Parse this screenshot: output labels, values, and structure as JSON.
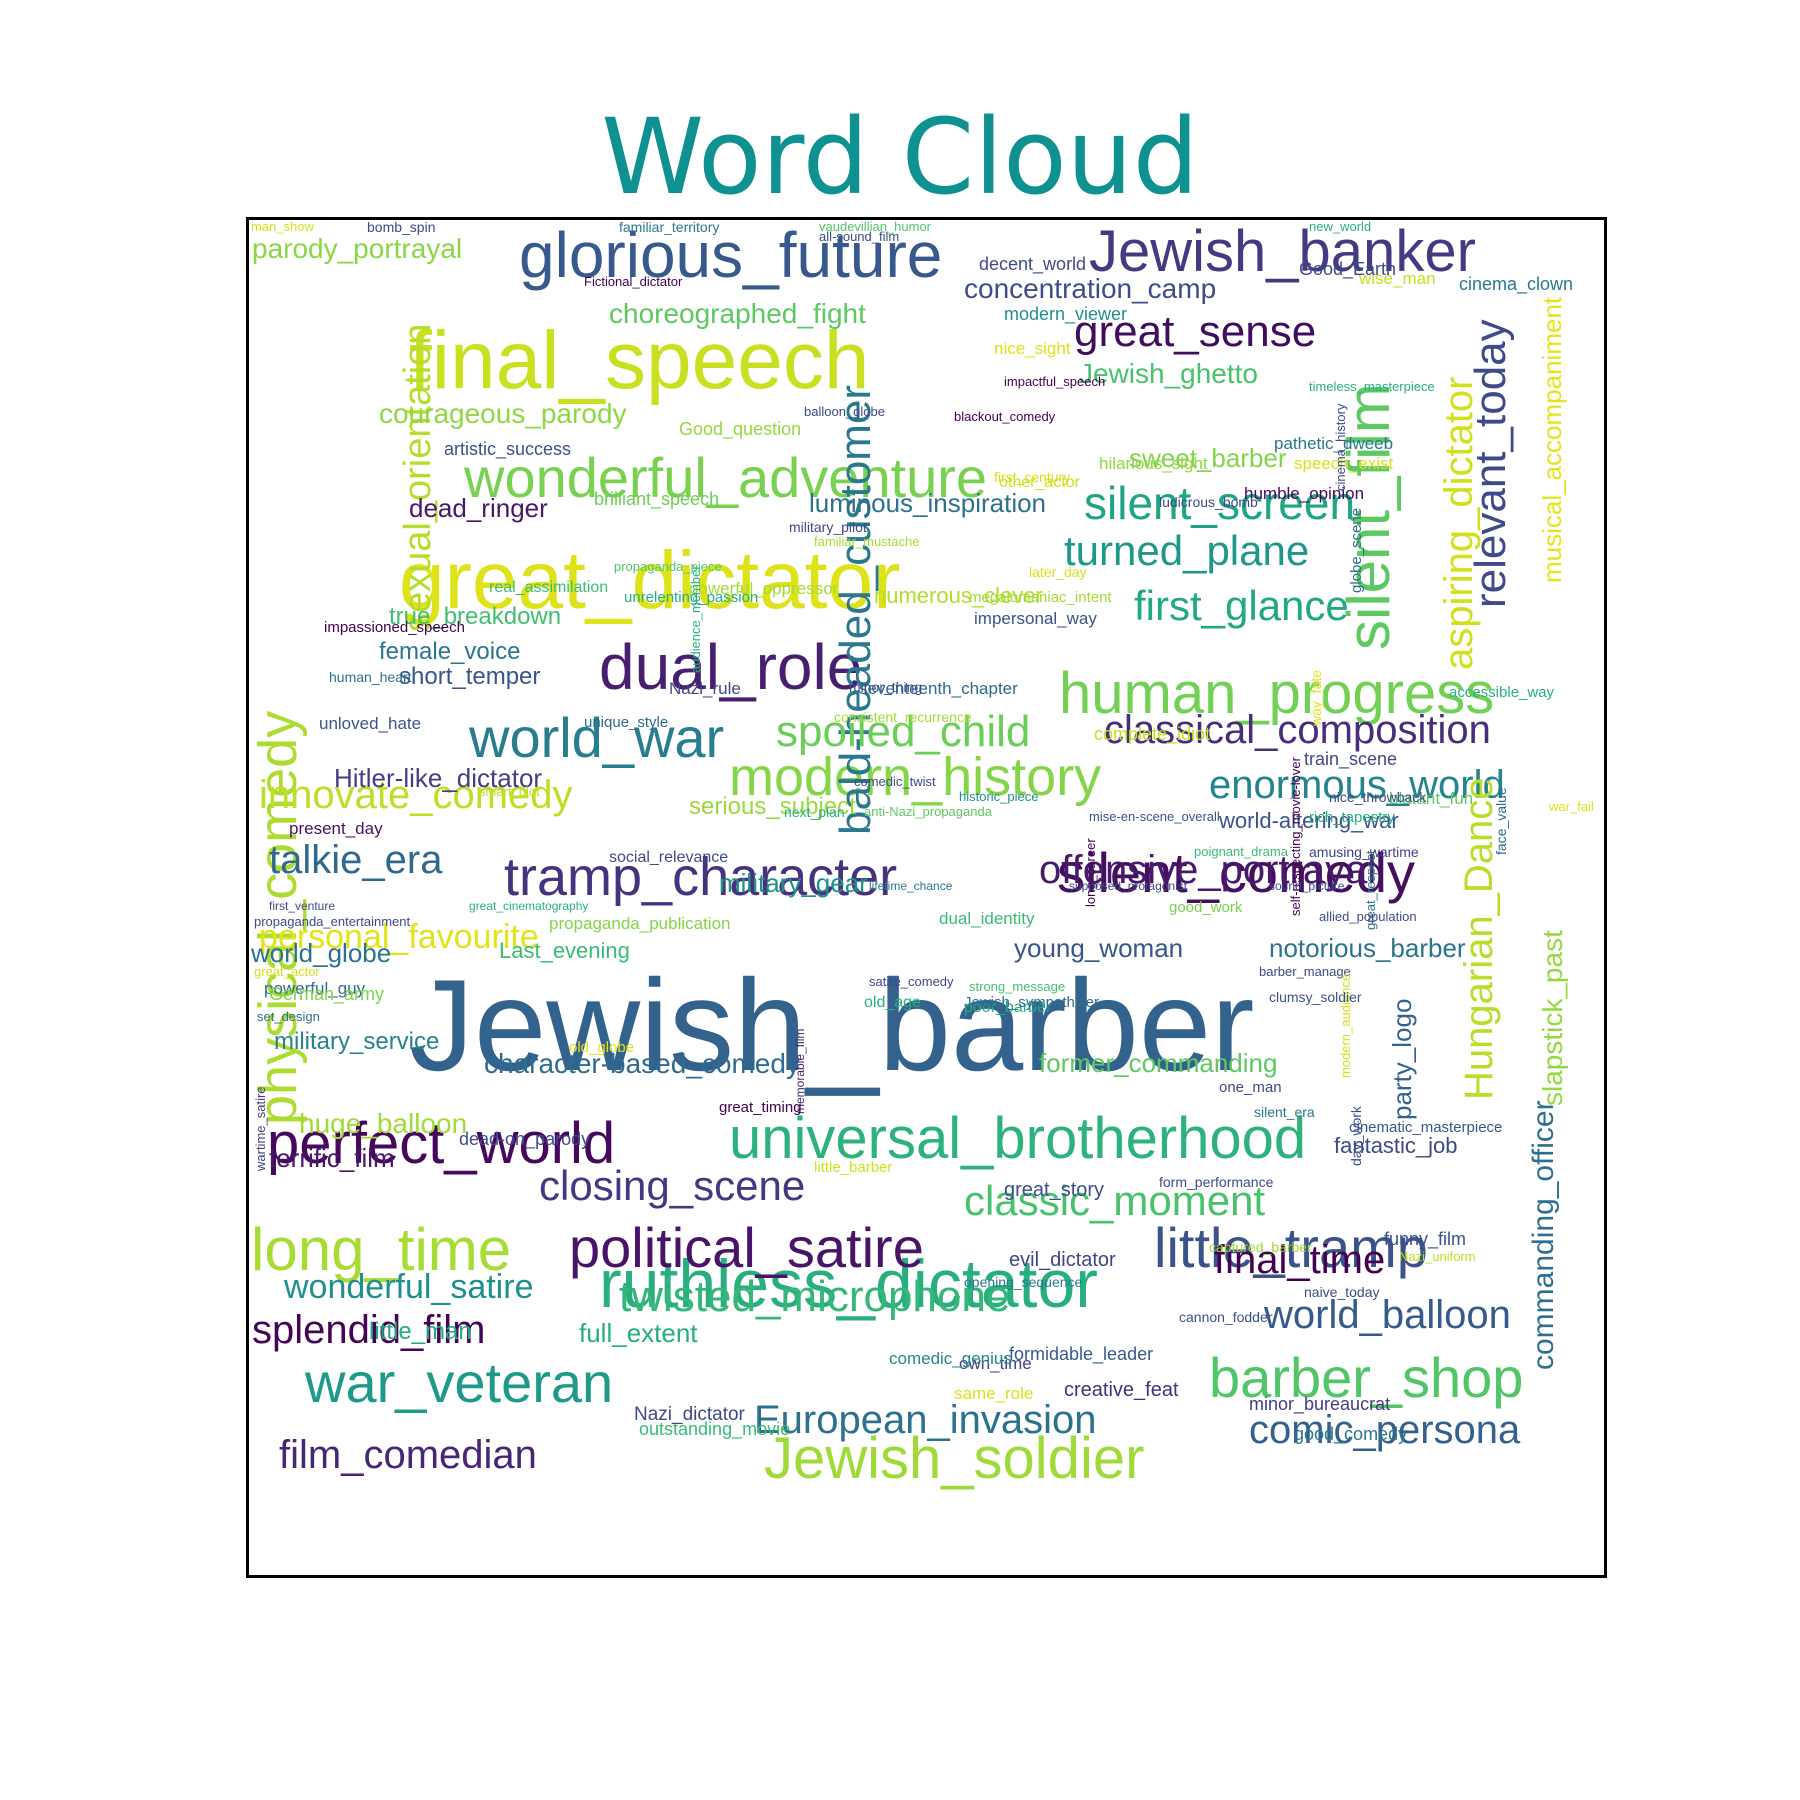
{
  "title": "Word Cloud",
  "colors": {
    "title": "#0f9191",
    "frame": "#000000",
    "background": "#ffffff"
  },
  "words": [
    {
      "text": "Jewish_barber",
      "color": "#33638d"
    },
    {
      "text": "great_dictator",
      "color": "#dde318"
    },
    {
      "text": "final_speech",
      "color": "#c9e020"
    },
    {
      "text": "glorious_future",
      "color": "#38598c"
    },
    {
      "text": "Jewish_banker",
      "color": "#443983"
    },
    {
      "text": "wonderful_adventure",
      "color": "#7ad151"
    },
    {
      "text": "dual_role",
      "color": "#481f70"
    },
    {
      "text": "ruthless_dictator",
      "color": "#29af7f"
    },
    {
      "text": "universal_brotherhood",
      "color": "#2db27d"
    },
    {
      "text": "human_progress",
      "color": "#73d056"
    },
    {
      "text": "modern_history",
      "color": "#86d549"
    },
    {
      "text": "tramp_character",
      "color": "#46337e"
    },
    {
      "text": "silent_comedy",
      "color": "#440f5e"
    },
    {
      "text": "perfect_world",
      "color": "#46085c"
    },
    {
      "text": "political_satire",
      "color": "#481467"
    },
    {
      "text": "little_tramp",
      "color": "#3b528b"
    },
    {
      "text": "war_veteran",
      "color": "#1f9a8a"
    },
    {
      "text": "barber_shop",
      "color": "#52c569"
    },
    {
      "text": "Jewish_soldier",
      "color": "#a0da39"
    },
    {
      "text": "long_time",
      "color": "#a8db34"
    },
    {
      "text": "world_war",
      "color": "#287d8e"
    },
    {
      "text": "bald-headed_customer",
      "color": "#2a788e"
    },
    {
      "text": "physical_comedy",
      "color": "#addc30"
    },
    {
      "text": "silent_film",
      "color": "#5ec962"
    },
    {
      "text": "silent_screen",
      "color": "#20a486"
    },
    {
      "text": "great_sense",
      "color": "#3f0e5c"
    },
    {
      "text": "relevant_today",
      "color": "#3e4a89"
    },
    {
      "text": "aspiring_dictator",
      "color": "#d0e11c"
    },
    {
      "text": "sexual_orientation",
      "color": "#b5de2b"
    },
    {
      "text": "spoiled_child",
      "color": "#6ccd5a"
    },
    {
      "text": "classical_composition",
      "color": "#472d7b"
    },
    {
      "text": "enormous_world",
      "color": "#25848e"
    },
    {
      "text": "turned_plane",
      "color": "#1f988b"
    },
    {
      "text": "first_glance",
      "color": "#22a884"
    },
    {
      "text": "innovate_comedy",
      "color": "#bddf26"
    },
    {
      "text": "talkie_era",
      "color": "#31688e"
    },
    {
      "text": "offensive_portrayal",
      "color": "#481a6c"
    },
    {
      "text": "Hungarian_Dance",
      "color": "#b8de29"
    },
    {
      "text": "twisted_microphone",
      "color": "#35b779"
    },
    {
      "text": "closing_scene",
      "color": "#453781"
    },
    {
      "text": "classic_moment",
      "color": "#4ac16d"
    },
    {
      "text": "final_time",
      "color": "#440154"
    },
    {
      "text": "world_balloon",
      "color": "#375a8c"
    },
    {
      "text": "European_invasion",
      "color": "#2c728e"
    },
    {
      "text": "comic_persona",
      "color": "#355f8d"
    },
    {
      "text": "film_comedian",
      "color": "#482677"
    },
    {
      "text": "splendid_film",
      "color": "#450457"
    },
    {
      "text": "wonderful_satire",
      "color": "#218f8d"
    },
    {
      "text": "commanding_officer",
      "color": "#2e6e8e"
    },
    {
      "text": "slapstick_past",
      "color": "#95d840"
    },
    {
      "text": "musical_accompaniment",
      "color": "#e5e419"
    },
    {
      "text": "personal_favourite",
      "color": "#e2e418"
    },
    {
      "text": "courageous_parody",
      "color": "#8fd744"
    },
    {
      "text": "choreographed_fight",
      "color": "#5ec962"
    },
    {
      "text": "parody_portrayal",
      "color": "#8bd646"
    },
    {
      "text": "concentration_camp",
      "color": "#3e4c8a"
    },
    {
      "text": "Jewish_ghetto",
      "color": "#4ac16d"
    },
    {
      "text": "sweet_barber",
      "color": "#84d44b"
    },
    {
      "text": "luminous_inspiration",
      "color": "#2d718e"
    },
    {
      "text": "dead_ringer",
      "color": "#48186a"
    },
    {
      "text": "character-based_comedy",
      "color": "#2f6b8e"
    },
    {
      "text": "Hitler-like_dictator",
      "color": "#433e85"
    },
    {
      "text": "numerous_clever",
      "color": "#b2dd2d"
    },
    {
      "text": "true_breakdown",
      "color": "#42be71"
    },
    {
      "text": "female_voice",
      "color": "#2b758e"
    },
    {
      "text": "short_temper",
      "color": "#3a548c"
    },
    {
      "text": "military_gear",
      "color": "#21918c"
    },
    {
      "text": "serious_subject",
      "color": "#9bd93c"
    },
    {
      "text": "young_woman",
      "color": "#39568c"
    },
    {
      "text": "notorious_barber",
      "color": "#2c738e"
    },
    {
      "text": "world-altering_war",
      "color": "#3b528b"
    },
    {
      "text": "former_commanding",
      "color": "#5ec962"
    },
    {
      "text": "huge_balloon",
      "color": "#a2da37"
    },
    {
      "text": "terrific_film",
      "color": "#481769"
    },
    {
      "text": "world_globe",
      "color": "#2c718e"
    },
    {
      "text": "military_service",
      "color": "#26828e"
    },
    {
      "text": "full_extent",
      "color": "#27ad81"
    },
    {
      "text": "little_man",
      "color": "#25ab82"
    },
    {
      "text": "party_logo",
      "color": "#34618d"
    },
    {
      "text": "Last_evening",
      "color": "#3bbb75"
    },
    {
      "text": "fantastic_job",
      "color": "#3e4989"
    },
    {
      "text": "great_story",
      "color": "#3d4e8a"
    },
    {
      "text": "artistic_success",
      "color": "#3c508b"
    },
    {
      "text": "Good_question",
      "color": "#95d840"
    },
    {
      "text": "brilliant_speech",
      "color": "#6ece58"
    },
    {
      "text": "humble_opinion",
      "color": "#46085c"
    },
    {
      "text": "real_assimilation",
      "color": "#40bd72"
    },
    {
      "text": "powerful_oppressor",
      "color": "#a5db36"
    },
    {
      "text": "impersonal_way",
      "color": "#3b528b"
    },
    {
      "text": "unloved_hate",
      "color": "#39558c"
    },
    {
      "text": "present_day",
      "color": "#471164"
    },
    {
      "text": "powerful_guy",
      "color": "#2e6d8e"
    },
    {
      "text": "German_army",
      "color": "#7fd34e"
    },
    {
      "text": "dead-on_parody",
      "color": "#3e4a89"
    },
    {
      "text": "evil_dictator",
      "color": "#404588"
    },
    {
      "text": "formidable_leader",
      "color": "#38598c"
    },
    {
      "text": "creative_feat",
      "color": "#46307e"
    },
    {
      "text": "minor_bureaucrat",
      "color": "#433d84"
    },
    {
      "text": "good_comedy",
      "color": "#2a788e"
    },
    {
      "text": "outstanding_movie",
      "color": "#3aba76"
    },
    {
      "text": "Nazi_dictator",
      "color": "#3e4989"
    },
    {
      "text": "same_role",
      "color": "#d8e219"
    },
    {
      "text": "own_time",
      "color": "#433e85"
    },
    {
      "text": "comedic_genius",
      "color": "#24878e"
    },
    {
      "text": "funny_film",
      "color": "#3b518b"
    },
    {
      "text": "blatant_fun",
      "color": "#5ec962"
    },
    {
      "text": "wise_man",
      "color": "#cae11f"
    },
    {
      "text": "Good_Earth",
      "color": "#3e4a89"
    },
    {
      "text": "pathetic_dweeb",
      "color": "#2a788e"
    },
    {
      "text": "speech_exist",
      "color": "#d8e219"
    },
    {
      "text": "Nazi_rule",
      "color": "#3f4788"
    },
    {
      "text": "seventeenth_chapter",
      "color": "#31688e"
    },
    {
      "text": "cinema_clown",
      "color": "#2a788e"
    },
    {
      "text": "complete_idiot",
      "color": "#c5e021"
    },
    {
      "text": "train_scene",
      "color": "#3f4889"
    },
    {
      "text": "dual_identity",
      "color": "#3bbb75"
    },
    {
      "text": "propaganda_publication",
      "color": "#84d44b"
    },
    {
      "text": "old_age",
      "color": "#2ab07f"
    },
    {
      "text": "poor_barber",
      "color": "#26ad81"
    },
    {
      "text": "globe_scene",
      "color": "#2e6f8e"
    },
    {
      "text": "old_globe",
      "color": "#e5e419"
    },
    {
      "text": "Jewish_sympathizer",
      "color": "#2e6e8e"
    },
    {
      "text": "little_barber",
      "color": "#d2e21b"
    },
    {
      "text": "cinematic_masterpiece",
      "color": "#39568c"
    },
    {
      "text": "modern_viewer",
      "color": "#218f8d"
    },
    {
      "text": "decent_world",
      "color": "#3e4a89"
    },
    {
      "text": "nice_sight",
      "color": "#dde318"
    },
    {
      "text": "hilarious_sight",
      "color": "#90d743"
    },
    {
      "text": "other_actor",
      "color": "#d2e21b"
    },
    {
      "text": "social_relevance",
      "color": "#3e4a89"
    },
    {
      "text": "impassioned_speech",
      "color": "#440154"
    },
    {
      "text": "unrelenting_passion",
      "color": "#27ad81"
    },
    {
      "text": "megalomaniac_intent",
      "color": "#a2da37"
    },
    {
      "text": "good_work",
      "color": "#7ad151"
    },
    {
      "text": "rich_tapestry",
      "color": "#29af7f"
    },
    {
      "text": "amusing_wartime",
      "color": "#433e85"
    },
    {
      "text": "nice_throwback",
      "color": "#3e4a89"
    },
    {
      "text": "great_respect",
      "color": "#2d708e"
    },
    {
      "text": "accessible_way",
      "color": "#2ab07f"
    },
    {
      "text": "military_pilot",
      "color": "#3f4889"
    },
    {
      "text": "propaganda_piece",
      "color": "#52c569"
    },
    {
      "text": "familiar_mustache",
      "color": "#a8db34"
    },
    {
      "text": "later_day",
      "color": "#d8e219"
    },
    {
      "text": "way_fate",
      "color": "#e5e419"
    },
    {
      "text": "face_value",
      "color": "#31688e"
    },
    {
      "text": "audience_member",
      "color": "#2ab07f"
    },
    {
      "text": "human_heart",
      "color": "#2c718e"
    },
    {
      "text": "consistent_recurrence",
      "color": "#a5db36"
    },
    {
      "text": "unique_style",
      "color": "#31688e"
    },
    {
      "text": "smart_plot",
      "color": "#c2df23"
    },
    {
      "text": "mise-en-scene_overall",
      "color": "#3b528b"
    },
    {
      "text": "poignant_drama",
      "color": "#3bbb75"
    },
    {
      "text": "allied_population",
      "color": "#3d4d8a"
    },
    {
      "text": "next_plan",
      "color": "#29af7f"
    },
    {
      "text": "comedic_twist",
      "color": "#3e4a89"
    },
    {
      "text": "historic_piece",
      "color": "#21918c"
    },
    {
      "text": "anti-Nazi_propaganda",
      "color": "#5ec962"
    },
    {
      "text": "satire_comedy",
      "color": "#3e4989"
    },
    {
      "text": "strong_message",
      "color": "#44bf70"
    },
    {
      "text": "barber_manage",
      "color": "#3e4a89"
    },
    {
      "text": "war_fail",
      "color": "#d8e219"
    },
    {
      "text": "propaganda_entertainment",
      "color": "#3e4a89"
    },
    {
      "text": "set_design",
      "color": "#2d718e"
    },
    {
      "text": "great_actor",
      "color": "#d2e21b"
    },
    {
      "text": "memorable_film",
      "color": "#482475"
    },
    {
      "text": "long_career",
      "color": "#440154"
    },
    {
      "text": "modern_audience",
      "color": "#d2e21b"
    },
    {
      "text": "one_man",
      "color": "#3e4a89"
    },
    {
      "text": "clumsy_soldier",
      "color": "#3b528b"
    },
    {
      "text": "wartime_satire",
      "color": "#433e85"
    },
    {
      "text": "minor_thing",
      "color": "#3e4a89"
    },
    {
      "text": "great_timing",
      "color": "#440154"
    },
    {
      "text": "silent_era",
      "color": "#2a788e"
    },
    {
      "text": "day_work",
      "color": "#3e4a89"
    },
    {
      "text": "opening_sequence",
      "color": "#2a788e"
    },
    {
      "text": "naive_today",
      "color": "#3e4a89"
    },
    {
      "text": "cannon_fodder",
      "color": "#3b528b"
    },
    {
      "text": "captured_barber",
      "color": "#a0da39"
    },
    {
      "text": "form_performance",
      "color": "#3e4a89"
    },
    {
      "text": "Nazi_uniform",
      "color": "#c2df23"
    },
    {
      "text": "man_show",
      "color": "#d2e21b"
    },
    {
      "text": "bomb_spin",
      "color": "#3e4a89"
    },
    {
      "text": "familiar_territory",
      "color": "#2a788e"
    },
    {
      "text": "vaudevillian_humor",
      "color": "#52c569"
    },
    {
      "text": "all-sound_film",
      "color": "#3e4a89"
    },
    {
      "text": "Fictional_dictator",
      "color": "#440154"
    },
    {
      "text": "new_world",
      "color": "#2ab07f"
    },
    {
      "text": "impactful_speech",
      "color": "#440154"
    },
    {
      "text": "timeless_masterpiece",
      "color": "#29af7f"
    },
    {
      "text": "balloon_globe",
      "color": "#3e4a89"
    },
    {
      "text": "blackout_comedy",
      "color": "#440154"
    },
    {
      "text": "cinema_history",
      "color": "#3e4a89"
    },
    {
      "text": "first_century",
      "color": "#d2e21b"
    },
    {
      "text": "ludicrous_bomb",
      "color": "#3e4a89"
    },
    {
      "text": "self-respecting_movie-lover",
      "color": "#440154"
    },
    {
      "text": "lifetime_chance",
      "color": "#2a788e"
    },
    {
      "text": "supposed_protagonist",
      "color": "#3e4a89"
    },
    {
      "text": "sound_picture",
      "color": "#3e4a89"
    },
    {
      "text": "first_venture",
      "color": "#3e4a89"
    },
    {
      "text": "great_cinematography",
      "color": "#2ab07f"
    }
  ]
}
